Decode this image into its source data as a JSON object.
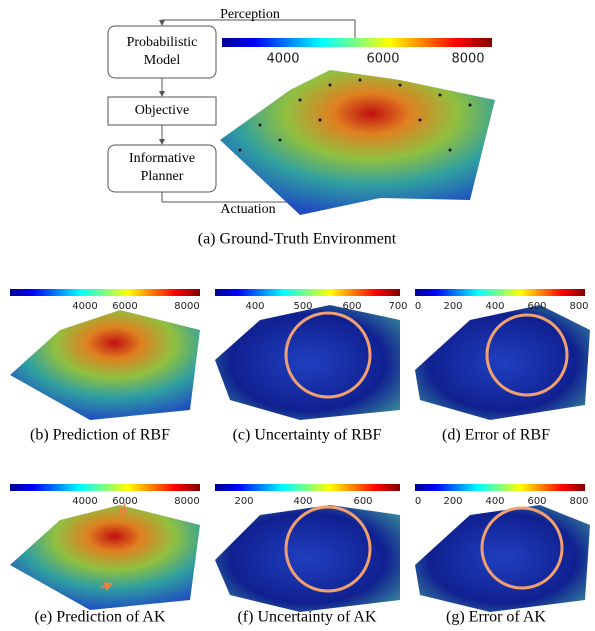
{
  "diagram": {
    "perception": "Perception",
    "actuation": "Actuation",
    "nodes": [
      {
        "lines": [
          "Probabilistic",
          "Model"
        ]
      },
      {
        "lines": [
          "Objective"
        ]
      },
      {
        "lines": [
          "Informative",
          "Planner"
        ]
      }
    ]
  },
  "panels": [
    {
      "caption": "(a) Ground-Truth Environment",
      "colorbar_ticks": [
        "4000",
        "6000",
        "8000"
      ]
    },
    {
      "caption": "(b) Prediction of RBF",
      "colorbar_ticks": [
        "4000",
        "6000",
        "8000"
      ]
    },
    {
      "caption": "(c) Uncertainty of RBF",
      "colorbar_ticks": [
        "400",
        "500",
        "600",
        "700"
      ]
    },
    {
      "caption": "(d) Error of RBF",
      "colorbar_ticks": [
        "0",
        "200",
        "400",
        "600",
        "800"
      ]
    },
    {
      "caption": "(e) Prediction of AK",
      "colorbar_ticks": [
        "4000",
        "6000",
        "8000"
      ]
    },
    {
      "caption": "(f) Uncertainty of AK",
      "colorbar_ticks": [
        "200",
        "400",
        "600"
      ]
    },
    {
      "caption": "(g) Error of AK",
      "colorbar_ticks": [
        "0",
        "200",
        "400",
        "600",
        "800"
      ]
    }
  ]
}
